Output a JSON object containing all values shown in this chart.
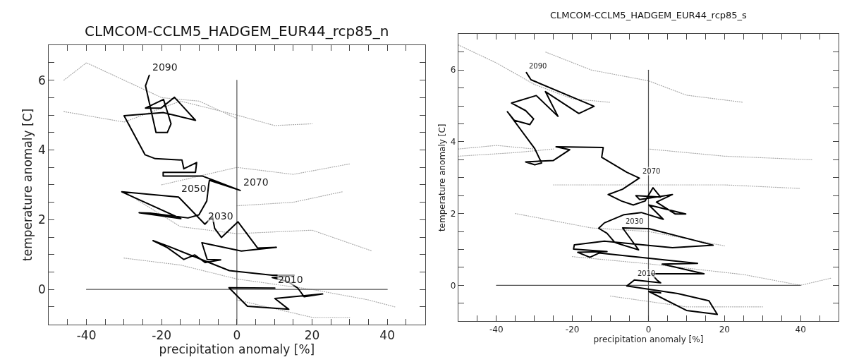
{
  "chart_data": [
    {
      "type": "line",
      "title": "CLMCOM-CCLM5_HADGEM_EUR44_rcp85_n",
      "xlabel": "precipitation anomaly [%]",
      "ylabel": "temperature anomaly [C]",
      "xlim": [
        -50,
        50
      ],
      "ylim": [
        -1,
        7
      ],
      "xticks": [
        {
          "value": -45,
          "label": null
        },
        -40,
        {
          "value": -35,
          "label": null
        },
        {
          "value": -30,
          "label": null
        },
        {
          "value": -25,
          "label": null
        },
        -20,
        {
          "value": -15,
          "label": null
        },
        {
          "value": -10,
          "label": null
        },
        {
          "value": -5,
          "label": null
        },
        0,
        {
          "value": 5,
          "label": null
        },
        {
          "value": 10,
          "label": null
        },
        {
          "value": 15,
          "label": null
        },
        20,
        {
          "value": 25,
          "label": null
        },
        {
          "value": 30,
          "label": null
        },
        {
          "value": 35,
          "label": null
        },
        40,
        {
          "value": 45,
          "label": null
        }
      ],
      "yticks": [
        {
          "value": -0.5,
          "label": null
        },
        0,
        {
          "value": 0.5,
          "label": null
        },
        {
          "value": 1,
          "label": null
        },
        {
          "value": 1.5,
          "label": null
        },
        2,
        {
          "value": 2.5,
          "label": null
        },
        {
          "value": 3,
          "label": null
        },
        {
          "value": 3.5,
          "label": null
        },
        4,
        {
          "value": 4.5,
          "label": null
        },
        {
          "value": 5,
          "label": null
        },
        {
          "value": 5.5,
          "label": null
        },
        6,
        {
          "value": 6.5,
          "label": null
        }
      ],
      "annotations": [
        {
          "text": "2090",
          "x": -23.3,
          "y": 6.14
        },
        {
          "text": "2070",
          "x": 0.9,
          "y": 2.84
        },
        {
          "text": "2050",
          "x": -15.5,
          "y": 2.65
        },
        {
          "text": "2030",
          "x": -8.5,
          "y": 1.87
        },
        {
          "text": "2010",
          "x": 10.1,
          "y": 0.04
        }
      ],
      "series": [
        {
          "color": "#aaaaaa",
          "line_style": "dotted",
          "x": [
            -46,
            -40,
            -30,
            -20,
            -10,
            0
          ],
          "values": [
            6.0,
            6.5,
            6.0,
            5.5,
            5.4,
            4.9
          ]
        },
        {
          "color": "#aaaaaa",
          "line_style": "dotted",
          "x": [
            -46,
            -30,
            -15,
            0,
            10,
            20
          ],
          "values": [
            5.1,
            4.8,
            5.4,
            5.0,
            4.7,
            4.75
          ]
        },
        {
          "color": "#aaaaaa",
          "line_style": "dotted",
          "x": [
            -20,
            0,
            15,
            30
          ],
          "values": [
            3.0,
            3.5,
            3.3,
            3.6
          ]
        },
        {
          "color": "#aaaaaa",
          "line_style": "dotted",
          "x": [
            0,
            15,
            28
          ],
          "values": [
            2.4,
            2.5,
            2.8
          ]
        },
        {
          "color": "#aaaaaa",
          "line_style": "dotted",
          "x": [
            -30,
            -15,
            0,
            20,
            36
          ],
          "values": [
            2.8,
            1.8,
            1.6,
            1.7,
            1.1
          ]
        },
        {
          "color": "#aaaaaa",
          "line_style": "dotted",
          "x": [
            -30,
            -15,
            0,
            20,
            35,
            42
          ],
          "values": [
            0.9,
            0.7,
            0.3,
            0.0,
            -0.3,
            -0.5
          ]
        },
        {
          "color": "#aaaaaa",
          "line_style": "dotted",
          "x": [
            0,
            20,
            30
          ],
          "values": [
            -0.3,
            -0.8,
            -0.8
          ]
        },
        {
          "color": "#555555",
          "line_style": "solid",
          "x": [
            -40,
            40
          ],
          "values": [
            0,
            0
          ]
        },
        {
          "color": "#555555",
          "line_style": "solid",
          "x": [
            0,
            0
          ],
          "values": [
            -1,
            6
          ]
        },
        {
          "color": "#000000",
          "line_style": "solid",
          "x": [
            10.1,
            -2.1,
            2.8,
            13.8,
            10.1,
            22.8,
            17.9,
            16.2,
            13.7,
            9.4,
            15.2,
            9.4,
            -2,
            -18.5,
            -22.3,
            -18.5,
            -14.1,
            -11.2,
            -8.4,
            -4.3,
            -7.9,
            -9.3,
            1.2,
            10.5,
            5.5,
            0.3,
            -4.1,
            -5.9,
            -6.5,
            -8.5,
            -15.5,
            -30.6,
            -14.9,
            -26,
            -23,
            -13,
            -10.1,
            -8,
            -7.5,
            -7.3,
            0.9,
            -9.1,
            -19.6,
            -19.6,
            -11,
            -10.7,
            -14.1,
            -14.6,
            -21.7,
            -24.4,
            -30,
            -19.5,
            -11,
            -16.6,
            -20.2,
            -24.3,
            -19.5,
            -17.5,
            -18.5,
            -21.5,
            -24.3,
            -23.3
          ],
          "values": [
            0.04,
            0.05,
            -0.48,
            -0.57,
            -0.26,
            -0.13,
            -0.21,
            0.04,
            0.22,
            0.34,
            0.41,
            0.41,
            0.54,
            1.25,
            1.4,
            1.2,
            0.86,
            0.99,
            0.77,
            0.85,
            0.86,
            1.34,
            1.1,
            1.21,
            1.19,
            1.94,
            1.49,
            1.75,
            2.09,
            1.87,
            2.65,
            2.8,
            2.03,
            2.2,
            2.19,
            2.05,
            2.14,
            2.54,
            3.0,
            3.13,
            2.84,
            3.25,
            3.25,
            3.36,
            3.36,
            3.64,
            3.46,
            3.71,
            3.75,
            3.86,
            4.98,
            5.07,
            4.85,
            5.51,
            5.2,
            5.2,
            5.45,
            4.75,
            4.5,
            4.5,
            5.84,
            6.14
          ]
        }
      ]
    },
    {
      "type": "line",
      "title": "CLMCOM-CCLM5_HADGEM_EUR44_rcp85_s",
      "xlabel": "precipitation anomaly [%]",
      "ylabel": "temperature anomaly [C]",
      "xlim": [
        -50,
        50
      ],
      "ylim": [
        -1,
        7
      ],
      "xticks": [
        {
          "value": -45,
          "label": null
        },
        -40,
        {
          "value": -35,
          "label": null
        },
        {
          "value": -30,
          "label": null
        },
        {
          "value": -25,
          "label": null
        },
        -20,
        {
          "value": -15,
          "label": null
        },
        {
          "value": -10,
          "label": null
        },
        {
          "value": -5,
          "label": null
        },
        0,
        {
          "value": 5,
          "label": null
        },
        {
          "value": 10,
          "label": null
        },
        {
          "value": 15,
          "label": null
        },
        20,
        {
          "value": 25,
          "label": null
        },
        {
          "value": 30,
          "label": null
        },
        {
          "value": 35,
          "label": null
        },
        40,
        {
          "value": 45,
          "label": null
        }
      ],
      "yticks": [
        {
          "value": -0.5,
          "label": null
        },
        0,
        {
          "value": 0.5,
          "label": null
        },
        {
          "value": 1,
          "label": null
        },
        {
          "value": 1.5,
          "label": null
        },
        2,
        {
          "value": 2.5,
          "label": null
        },
        {
          "value": 3,
          "label": null
        },
        {
          "value": 3.5,
          "label": null
        },
        4,
        {
          "value": 4.5,
          "label": null
        },
        {
          "value": 5,
          "label": null
        },
        {
          "value": 5.5,
          "label": null
        },
        6,
        {
          "value": 6.5,
          "label": null
        }
      ],
      "annotations": [
        {
          "text": "2090",
          "x": -32.1,
          "y": 5.93
        },
        {
          "text": "2070",
          "x": -2.4,
          "y": 2.99
        },
        {
          "text": "2030",
          "x": -6.8,
          "y": 1.6
        },
        {
          "text": "2010",
          "x": -3.7,
          "y": 0.15
        }
      ],
      "series": [
        {
          "color": "#aaaaaa",
          "line_style": "dotted",
          "x": [
            -50,
            -40,
            -30,
            -20,
            -10
          ],
          "values": [
            6.7,
            6.2,
            5.6,
            5.2,
            5.1
          ]
        },
        {
          "color": "#aaaaaa",
          "line_style": "dotted",
          "x": [
            -27,
            -15,
            0,
            10,
            25
          ],
          "values": [
            6.5,
            6.0,
            5.7,
            5.3,
            5.1
          ]
        },
        {
          "color": "#aaaaaa",
          "line_style": "dotted",
          "x": [
            -50,
            -40,
            -30
          ],
          "values": [
            3.8,
            3.9,
            3.8
          ]
        },
        {
          "color": "#aaaaaa",
          "line_style": "dotted",
          "x": [
            -50,
            -35,
            -25
          ],
          "values": [
            3.6,
            3.7,
            3.8
          ]
        },
        {
          "color": "#aaaaaa",
          "line_style": "dotted",
          "x": [
            0,
            20,
            43
          ],
          "values": [
            3.8,
            3.6,
            3.5
          ]
        },
        {
          "color": "#aaaaaa",
          "line_style": "dotted",
          "x": [
            -25,
            0,
            20,
            40
          ],
          "values": [
            2.8,
            2.8,
            2.8,
            2.7
          ]
        },
        {
          "color": "#aaaaaa",
          "line_style": "dotted",
          "x": [
            -35,
            -15,
            0,
            20
          ],
          "values": [
            2.0,
            1.6,
            1.5,
            1.1
          ]
        },
        {
          "color": "#aaaaaa",
          "line_style": "dotted",
          "x": [
            -20,
            0,
            25,
            40,
            48
          ],
          "values": [
            0.8,
            0.6,
            0.3,
            0.0,
            0.2
          ]
        },
        {
          "color": "#aaaaaa",
          "line_style": "dotted",
          "x": [
            -10,
            10,
            30
          ],
          "values": [
            -0.3,
            -0.6,
            -0.6
          ]
        },
        {
          "color": "#555555",
          "line_style": "solid",
          "x": [
            -40,
            40
          ],
          "values": [
            0,
            0
          ]
        },
        {
          "color": "#555555",
          "line_style": "solid",
          "x": [
            0,
            0
          ],
          "values": [
            -1,
            6
          ]
        },
        {
          "color": "#000000",
          "line_style": "solid",
          "x": [
            3.2,
            0.1,
            10,
            18.1,
            15.9,
            7.7,
            -5.7,
            -3.7,
            3.2,
            2.2,
            0.8,
            14.6,
            3.6,
            12.9,
            -13,
            -15.4,
            -18.6,
            -10.9,
            -19.7,
            -19.5,
            -11.6,
            6.3,
            17,
            0.1,
            -6.8,
            -2.6,
            -8.8,
            -10.9,
            -13.1,
            -11.6,
            -6.4,
            -1.9,
            3.9,
            0.1,
            9.8,
            7,
            2.1,
            6.3,
            -2.3,
            -3.3,
            3.2,
            1.2,
            -0.9,
            -4,
            -7.1,
            -10.6,
            -6.8,
            -2.4,
            -5.7,
            -12.3,
            -11.9,
            -24.3,
            -20.7,
            -25,
            -32.3,
            -29.9,
            -28.1,
            -29.9,
            -37.1,
            -35.3,
            -31.2,
            -30.2,
            -32.3,
            -36,
            -29.5,
            -23.8,
            -27.1,
            -18.3,
            -14.3,
            -30.9,
            -32.1
          ],
          "values": [
            -0.21,
            -0.17,
            -0.7,
            -0.81,
            -0.43,
            -0.23,
            -0.02,
            0.15,
            0.07,
            0.15,
            0.32,
            0.32,
            0.59,
            0.61,
            0.9,
            0.78,
            0.92,
            0.94,
            1.01,
            1.13,
            1.23,
            1.05,
            1.12,
            1.58,
            1.6,
            0.99,
            1.19,
            1.45,
            1.59,
            1.74,
            1.97,
            2.03,
            1.84,
            2.24,
            1.99,
            1.99,
            2.32,
            2.53,
            2.39,
            2.5,
            2.46,
            2.72,
            2.35,
            2.24,
            2.35,
            2.53,
            2.68,
            2.99,
            3.15,
            3.57,
            3.84,
            3.86,
            3.78,
            3.48,
            3.44,
            3.36,
            3.41,
            3.81,
            4.84,
            4.6,
            4.48,
            4.64,
            4.87,
            5.08,
            5.29,
            4.71,
            5.4,
            4.79,
            4.99,
            5.73,
            5.93
          ]
        }
      ]
    }
  ]
}
